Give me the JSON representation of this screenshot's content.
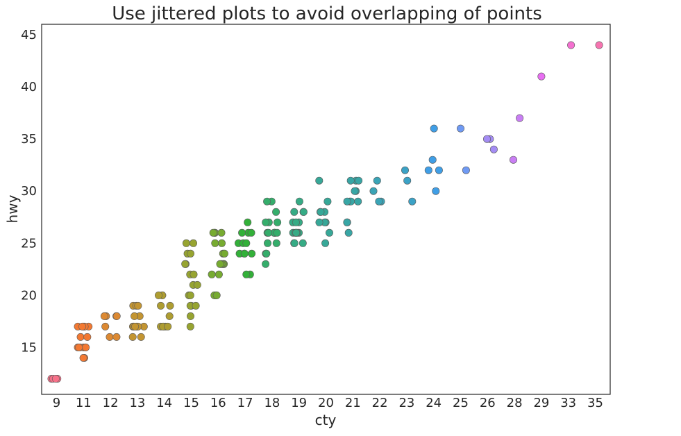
{
  "chart_data": {
    "type": "scatter",
    "title": "Use jittered plots to avoid overlapping of points",
    "xlabel": "cty",
    "ylabel": "hwy",
    "categories": [
      "9",
      "11",
      "12",
      "13",
      "14",
      "15",
      "16",
      "17",
      "18",
      "19",
      "20",
      "21",
      "22",
      "23",
      "24",
      "25",
      "26",
      "28",
      "29",
      "33",
      "35"
    ],
    "ylim": [
      10.5,
      46
    ],
    "yticks": [
      15,
      20,
      25,
      30,
      35,
      40,
      45
    ],
    "grid": false,
    "legend": "none",
    "palette": [
      "#f77189",
      "#f37932",
      "#dc8932",
      "#c39532",
      "#ae9d31",
      "#97a431",
      "#77ab31",
      "#33b039",
      "#35ad6b",
      "#36ab85",
      "#37a898",
      "#38a6a5",
      "#3aa4b6",
      "#3ba2c6",
      "#3f9ee6",
      "#6f9af4",
      "#a48cf4",
      "#c97ef4",
      "#e86ff2",
      "#f470d0",
      "#f674b0"
    ],
    "points": [
      [
        "9",
        12
      ],
      [
        "9",
        12
      ],
      [
        "9",
        12
      ],
      [
        "9",
        12
      ],
      [
        "9",
        12
      ],
      [
        "11",
        17
      ],
      [
        "11",
        17
      ],
      [
        "11",
        17
      ],
      [
        "11",
        17
      ],
      [
        "11",
        17
      ],
      [
        "11",
        16
      ],
      [
        "11",
        16
      ],
      [
        "11",
        15
      ],
      [
        "11",
        15
      ],
      [
        "11",
        15
      ],
      [
        "11",
        15
      ],
      [
        "11",
        15
      ],
      [
        "11",
        15
      ],
      [
        "11",
        14
      ],
      [
        "11",
        14
      ],
      [
        "12",
        18
      ],
      [
        "12",
        18
      ],
      [
        "12",
        18
      ],
      [
        "12",
        18
      ],
      [
        "12",
        17
      ],
      [
        "12",
        16
      ],
      [
        "12",
        16
      ],
      [
        "13",
        19
      ],
      [
        "13",
        19
      ],
      [
        "13",
        19
      ],
      [
        "13",
        18
      ],
      [
        "13",
        18
      ],
      [
        "13",
        17
      ],
      [
        "13",
        17
      ],
      [
        "13",
        17
      ],
      [
        "13",
        17
      ],
      [
        "13",
        17
      ],
      [
        "13",
        17
      ],
      [
        "13",
        16
      ],
      [
        "13",
        16
      ],
      [
        "14",
        20
      ],
      [
        "14",
        20
      ],
      [
        "14",
        20
      ],
      [
        "14",
        19
      ],
      [
        "14",
        19
      ],
      [
        "14",
        18
      ],
      [
        "14",
        17
      ],
      [
        "14",
        17
      ],
      [
        "14",
        17
      ],
      [
        "14",
        17
      ],
      [
        "14",
        17
      ],
      [
        "15",
        25
      ],
      [
        "15",
        25
      ],
      [
        "15",
        24
      ],
      [
        "15",
        24
      ],
      [
        "15",
        23
      ],
      [
        "15",
        23
      ],
      [
        "15",
        22
      ],
      [
        "15",
        22
      ],
      [
        "15",
        21
      ],
      [
        "15",
        21
      ],
      [
        "15",
        20
      ],
      [
        "15",
        20
      ],
      [
        "15",
        19
      ],
      [
        "15",
        19
      ],
      [
        "15",
        19
      ],
      [
        "15",
        18
      ],
      [
        "15",
        17
      ],
      [
        "16",
        26
      ],
      [
        "16",
        26
      ],
      [
        "16",
        26
      ],
      [
        "16",
        26
      ],
      [
        "16",
        25
      ],
      [
        "16",
        25
      ],
      [
        "16",
        24
      ],
      [
        "16",
        24
      ],
      [
        "16",
        23
      ],
      [
        "16",
        23
      ],
      [
        "16",
        23
      ],
      [
        "16",
        23
      ],
      [
        "16",
        22
      ],
      [
        "16",
        22
      ],
      [
        "16",
        20
      ],
      [
        "16",
        20
      ],
      [
        "16",
        20
      ],
      [
        "16",
        20
      ],
      [
        "17",
        27
      ],
      [
        "17",
        26
      ],
      [
        "17",
        26
      ],
      [
        "17",
        26
      ],
      [
        "17",
        25
      ],
      [
        "17",
        25
      ],
      [
        "17",
        25
      ],
      [
        "17",
        24
      ],
      [
        "17",
        24
      ],
      [
        "17",
        24
      ],
      [
        "17",
        24
      ],
      [
        "17",
        22
      ],
      [
        "17",
        22
      ],
      [
        "18",
        29
      ],
      [
        "18",
        29
      ],
      [
        "18",
        28
      ],
      [
        "18",
        27
      ],
      [
        "18",
        27
      ],
      [
        "18",
        27
      ],
      [
        "18",
        26
      ],
      [
        "18",
        26
      ],
      [
        "18",
        26
      ],
      [
        "18",
        26
      ],
      [
        "18",
        26
      ],
      [
        "18",
        26
      ],
      [
        "18",
        25
      ],
      [
        "18",
        25
      ],
      [
        "18",
        24
      ],
      [
        "18",
        24
      ],
      [
        "18",
        23
      ],
      [
        "19",
        29
      ],
      [
        "19",
        28
      ],
      [
        "19",
        28
      ],
      [
        "19",
        28
      ],
      [
        "19",
        27
      ],
      [
        "19",
        27
      ],
      [
        "19",
        27
      ],
      [
        "19",
        26
      ],
      [
        "19",
        26
      ],
      [
        "19",
        26
      ],
      [
        "19",
        26
      ],
      [
        "19",
        26
      ],
      [
        "19",
        25
      ],
      [
        "19",
        25
      ],
      [
        "19",
        25
      ],
      [
        "20",
        31
      ],
      [
        "20",
        29
      ],
      [
        "20",
        28
      ],
      [
        "20",
        28
      ],
      [
        "20",
        28
      ],
      [
        "20",
        27
      ],
      [
        "20",
        27
      ],
      [
        "20",
        27
      ],
      [
        "20",
        26
      ],
      [
        "20",
        25
      ],
      [
        "21",
        31
      ],
      [
        "21",
        31
      ],
      [
        "21",
        31
      ],
      [
        "21",
        30
      ],
      [
        "21",
        30
      ],
      [
        "21",
        29
      ],
      [
        "21",
        29
      ],
      [
        "21",
        29
      ],
      [
        "21",
        29
      ],
      [
        "21",
        27
      ],
      [
        "21",
        27
      ],
      [
        "21",
        26
      ],
      [
        "22",
        31
      ],
      [
        "22",
        30
      ],
      [
        "22",
        29
      ],
      [
        "22",
        29
      ],
      [
        "23",
        32
      ],
      [
        "23",
        31
      ],
      [
        "23",
        29
      ],
      [
        "24",
        36
      ],
      [
        "24",
        33
      ],
      [
        "24",
        32
      ],
      [
        "24",
        32
      ],
      [
        "24",
        30
      ],
      [
        "25",
        36
      ],
      [
        "25",
        32
      ],
      [
        "26",
        35
      ],
      [
        "26",
        35
      ],
      [
        "26",
        34
      ],
      [
        "28",
        37
      ],
      [
        "28",
        33
      ],
      [
        "29",
        41
      ],
      [
        "33",
        44
      ],
      [
        "35",
        44
      ]
    ]
  }
}
